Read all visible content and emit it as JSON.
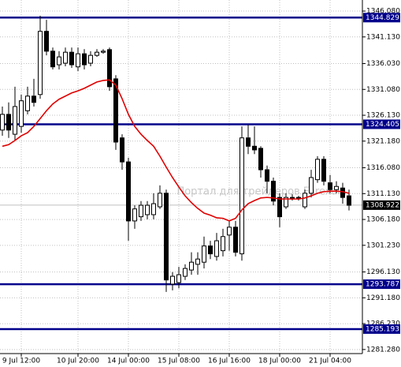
{
  "chart_data": {
    "type": "candlestick",
    "watermark": "Портал для трейдеров Forexac",
    "categories": [
      null,
      null,
      null,
      "9 Jul 12:00",
      null,
      null,
      null,
      null,
      null,
      null,
      null,
      null,
      "10 Jul 20:00",
      null,
      null,
      null,
      null,
      null,
      null,
      null,
      "14 Jul 00:00",
      null,
      null,
      null,
      null,
      null,
      null,
      null,
      "15 Jul 08:00",
      null,
      null,
      null,
      null,
      null,
      null,
      null,
      "16 Jul 16:00",
      null,
      null,
      null,
      null,
      null,
      null,
      null,
      "18 Jul 00:00",
      null,
      null,
      null,
      null,
      null,
      null,
      null,
      "21 Jul 04:00",
      null,
      null,
      null
    ],
    "open": [
      1323.3,
      1326.3,
      1322.5,
      1324.0,
      1327.0,
      1329.8,
      1330.1,
      1342.2,
      1338.4,
      1335.8,
      1336.1,
      1338.2,
      1335.4,
      1337.9,
      1336.1,
      1337.6,
      1338.2,
      1338.7,
      1333.1,
      1321.8,
      1317.2,
      1305.9,
      1306.7,
      1307.1,
      1307.1,
      1308.6,
      1311.2,
      1293.8,
      1294.1,
      1295.3,
      1296.5,
      1297.6,
      1298.0,
      1301.1,
      1299.1,
      1300.2,
      1303.2,
      1304.7,
      1299.6,
      1321.8,
      1320.2,
      1319.8,
      1315.7,
      1313.5,
      1310.4,
      1308.6,
      1310.4,
      1310.3,
      1308.6,
      1311.2,
      1313.8,
      1317.7,
      1313.2,
      1311.9,
      1312.2,
      1310.7
    ],
    "high": [
      1327.8,
      1328.6,
      1331.6,
      1330.1,
      1331.6,
      1333.1,
      1345.2,
      1344.4,
      1339.1,
      1338.4,
      1339.1,
      1339.1,
      1339.1,
      1338.8,
      1338.4,
      1338.8,
      1338.8,
      1339.1,
      1333.8,
      1322.5,
      1318.0,
      1308.9,
      1309.7,
      1309.7,
      1311.2,
      1312.7,
      1311.9,
      1296.1,
      1297.1,
      1297.6,
      1299.9,
      1299.9,
      1302.9,
      1302.1,
      1303.6,
      1304.4,
      1305.9,
      1305.9,
      1324.0,
      1324.3,
      1324.0,
      1320.2,
      1316.5,
      1314.2,
      1311.2,
      1311.2,
      1311.0,
      1310.7,
      1311.9,
      1315.7,
      1318.3,
      1318.3,
      1314.7,
      1313.5,
      1313.2,
      1311.9
    ],
    "low": [
      1322.2,
      1321.8,
      1321.3,
      1322.8,
      1326.3,
      1327.8,
      1329.3,
      1337.6,
      1334.9,
      1334.9,
      1335.5,
      1335.2,
      1334.6,
      1334.9,
      1335.5,
      1337.3,
      1337.9,
      1330.8,
      1319.5,
      1315.7,
      1302.1,
      1304.4,
      1305.9,
      1306.2,
      1306.2,
      1308.2,
      1292.3,
      1292.6,
      1293.0,
      1294.6,
      1295.6,
      1295.6,
      1296.8,
      1298.6,
      1298.3,
      1299.1,
      1300.2,
      1299.1,
      1298.3,
      1318.7,
      1318.7,
      1314.2,
      1311.2,
      1308.9,
      1304.7,
      1308.2,
      1309.8,
      1309.8,
      1308.2,
      1310.4,
      1313.2,
      1312.7,
      1311.2,
      1311.2,
      1309.2,
      1307.9
    ],
    "close": [
      1326.3,
      1323.3,
      1327.8,
      1328.9,
      1329.8,
      1328.6,
      1342.2,
      1338.4,
      1335.4,
      1337.3,
      1338.2,
      1335.8,
      1337.9,
      1335.8,
      1337.6,
      1338.2,
      1338.4,
      1331.6,
      1321.0,
      1317.2,
      1305.9,
      1308.2,
      1308.9,
      1308.9,
      1309.2,
      1311.2,
      1294.6,
      1295.3,
      1295.6,
      1296.8,
      1298.0,
      1298.6,
      1301.1,
      1299.6,
      1302.1,
      1302.9,
      1304.7,
      1299.9,
      1321.8,
      1320.2,
      1319.5,
      1315.7,
      1313.5,
      1309.7,
      1306.7,
      1310.4,
      1310.3,
      1310.4,
      1311.2,
      1314.2,
      1317.7,
      1313.5,
      1311.9,
      1312.5,
      1310.4,
      1308.9
    ],
    "up_color": "#ffffff",
    "down_color": "#000000",
    "ma": {
      "color": "#e00000",
      "values": [
        1320.2,
        1320.5,
        1321.3,
        1322.2,
        1322.8,
        1324.0,
        1325.5,
        1327.0,
        1328.3,
        1329.2,
        1329.8,
        1330.4,
        1330.8,
        1331.3,
        1331.9,
        1332.5,
        1332.8,
        1332.9,
        1331.9,
        1329.3,
        1326.3,
        1324.0,
        1322.5,
        1321.3,
        1320.2,
        1318.3,
        1316.2,
        1314.2,
        1312.4,
        1310.7,
        1309.4,
        1308.3,
        1307.4,
        1307.0,
        1306.5,
        1306.4,
        1305.9,
        1306.4,
        1308.0,
        1309.2,
        1309.8,
        1310.3,
        1310.4,
        1310.3,
        1310.1,
        1310.1,
        1310.1,
        1310.1,
        1310.3,
        1310.7,
        1311.2,
        1311.5,
        1311.6,
        1311.6,
        1311.5,
        1311.2
      ]
    },
    "levels": [
      {
        "value": 1344.829,
        "color": "#00008b"
      },
      {
        "value": 1324.405,
        "color": "#00008b"
      },
      {
        "value": 1293.787,
        "color": "#00008b"
      },
      {
        "value": 1285.193,
        "color": "#00008b"
      }
    ],
    "current_price": 1308.922,
    "ylim": [
      1280.5,
      1348.2
    ],
    "yticks": [
      {
        "value": 1346.08,
        "label": "1346.080"
      },
      {
        "value": 1341.13,
        "label": "1341.130"
      },
      {
        "value": 1336.03,
        "label": "1336.030"
      },
      {
        "value": 1331.08,
        "label": "1331.080"
      },
      {
        "value": 1326.13,
        "label": "1326.130"
      },
      {
        "value": 1321.18,
        "label": "1321.180"
      },
      {
        "value": 1316.08,
        "label": "1316.080"
      },
      {
        "value": 1311.13,
        "label": "1311.130"
      },
      {
        "value": 1306.18,
        "label": "1306.180"
      },
      {
        "value": 1301.23,
        "label": "1301.230"
      },
      {
        "value": 1296.13,
        "label": "1296.130"
      },
      {
        "value": 1291.18,
        "label": "1291.180"
      },
      {
        "value": 1286.23,
        "label": "1286.230"
      },
      {
        "value": 1281.28,
        "label": "1281.280"
      }
    ],
    "grid": true
  }
}
